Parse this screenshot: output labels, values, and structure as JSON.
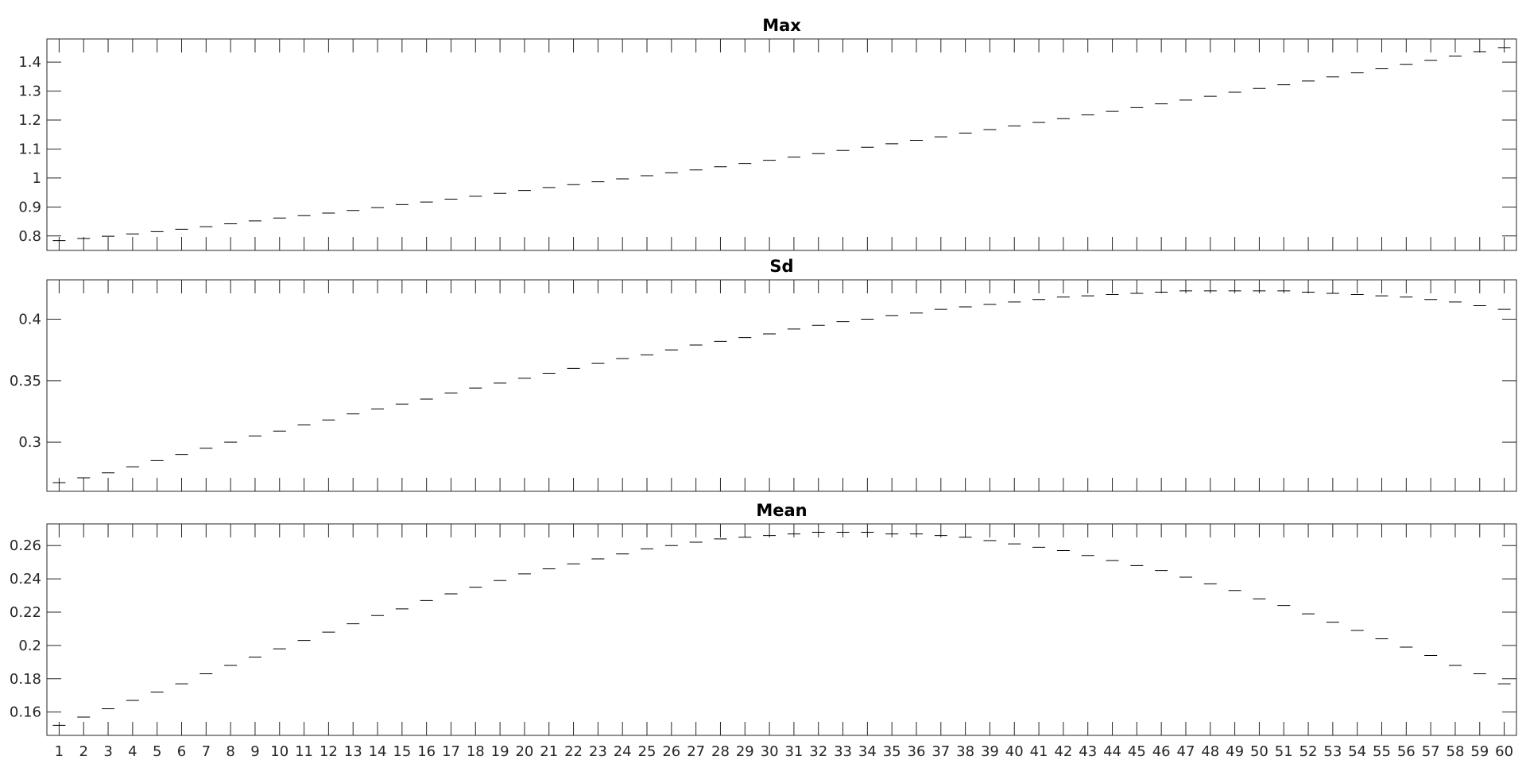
{
  "chart_data": [
    {
      "type": "line",
      "title": "Max",
      "xlabel": "",
      "ylabel": "",
      "x": [
        1,
        2,
        3,
        4,
        5,
        6,
        7,
        8,
        9,
        10,
        11,
        12,
        13,
        14,
        15,
        16,
        17,
        18,
        19,
        20,
        21,
        22,
        23,
        24,
        25,
        26,
        27,
        28,
        29,
        30,
        31,
        32,
        33,
        34,
        35,
        36,
        37,
        38,
        39,
        40,
        41,
        42,
        43,
        44,
        45,
        46,
        47,
        48,
        49,
        50,
        51,
        52,
        53,
        54,
        55,
        56,
        57,
        58,
        59,
        60
      ],
      "xlim": [
        0.5,
        60.5
      ],
      "ylim": [
        0.75,
        1.48
      ],
      "yticks": [
        0.8,
        0.9,
        1,
        1.1,
        1.2,
        1.3,
        1.4
      ],
      "ytick_labels": [
        "0.8",
        "0.9",
        "1",
        "1.1",
        "1.2",
        "1.3",
        "1.4"
      ],
      "show_x_tick_labels": false,
      "grid": false,
      "series": [
        {
          "values": [
            0.784,
            0.791,
            0.799,
            0.807,
            0.815,
            0.823,
            0.832,
            0.842,
            0.852,
            0.862,
            0.87,
            0.879,
            0.888,
            0.898,
            0.908,
            0.917,
            0.927,
            0.937,
            0.947,
            0.957,
            0.967,
            0.977,
            0.987,
            0.997,
            1.008,
            1.018,
            1.028,
            1.039,
            1.05,
            1.061,
            1.072,
            1.084,
            1.095,
            1.106,
            1.118,
            1.13,
            1.142,
            1.155,
            1.167,
            1.18,
            1.192,
            1.205,
            1.218,
            1.23,
            1.243,
            1.256,
            1.269,
            1.282,
            1.296,
            1.309,
            1.322,
            1.335,
            1.349,
            1.363,
            1.377,
            1.392,
            1.406,
            1.421,
            1.436,
            1.45
          ]
        }
      ]
    },
    {
      "type": "line",
      "title": "Sd",
      "xlabel": "",
      "ylabel": "",
      "x": [
        1,
        2,
        3,
        4,
        5,
        6,
        7,
        8,
        9,
        10,
        11,
        12,
        13,
        14,
        15,
        16,
        17,
        18,
        19,
        20,
        21,
        22,
        23,
        24,
        25,
        26,
        27,
        28,
        29,
        30,
        31,
        32,
        33,
        34,
        35,
        36,
        37,
        38,
        39,
        40,
        41,
        42,
        43,
        44,
        45,
        46,
        47,
        48,
        49,
        50,
        51,
        52,
        53,
        54,
        55,
        56,
        57,
        58,
        59,
        60
      ],
      "xlim": [
        0.5,
        60.5
      ],
      "ylim": [
        0.26,
        0.432
      ],
      "yticks": [
        0.3,
        0.35,
        0.4
      ],
      "ytick_labels": [
        "0.3",
        "0.35",
        "0.4"
      ],
      "show_x_tick_labels": false,
      "grid": false,
      "series": [
        {
          "values": [
            0.267,
            0.271,
            0.275,
            0.28,
            0.285,
            0.29,
            0.295,
            0.3,
            0.305,
            0.309,
            0.314,
            0.318,
            0.323,
            0.327,
            0.331,
            0.335,
            0.34,
            0.344,
            0.348,
            0.352,
            0.356,
            0.36,
            0.364,
            0.368,
            0.371,
            0.375,
            0.379,
            0.382,
            0.385,
            0.388,
            0.392,
            0.395,
            0.398,
            0.4,
            0.403,
            0.405,
            0.408,
            0.41,
            0.412,
            0.414,
            0.416,
            0.418,
            0.419,
            0.42,
            0.421,
            0.422,
            0.423,
            0.423,
            0.423,
            0.423,
            0.423,
            0.422,
            0.421,
            0.42,
            0.419,
            0.418,
            0.416,
            0.414,
            0.411,
            0.408
          ]
        }
      ]
    },
    {
      "type": "line",
      "title": "Mean",
      "xlabel": "",
      "ylabel": "",
      "x": [
        1,
        2,
        3,
        4,
        5,
        6,
        7,
        8,
        9,
        10,
        11,
        12,
        13,
        14,
        15,
        16,
        17,
        18,
        19,
        20,
        21,
        22,
        23,
        24,
        25,
        26,
        27,
        28,
        29,
        30,
        31,
        32,
        33,
        34,
        35,
        36,
        37,
        38,
        39,
        40,
        41,
        42,
        43,
        44,
        45,
        46,
        47,
        48,
        49,
        50,
        51,
        52,
        53,
        54,
        55,
        56,
        57,
        58,
        59,
        60
      ],
      "xlim": [
        0.5,
        60.5
      ],
      "ylim": [
        0.146,
        0.273
      ],
      "yticks": [
        0.16,
        0.18,
        0.2,
        0.22,
        0.24,
        0.26
      ],
      "ytick_labels": [
        "0.16",
        "0.18",
        "0.2",
        "0.22",
        "0.24",
        "0.26"
      ],
      "show_x_tick_labels": true,
      "xtick_labels": [
        "1",
        "2",
        "3",
        "4",
        "5",
        "6",
        "7",
        "8",
        "9",
        "10",
        "11",
        "12",
        "13",
        "14",
        "15",
        "16",
        "17",
        "18",
        "19",
        "20",
        "21",
        "22",
        "23",
        "24",
        "25",
        "26",
        "27",
        "28",
        "29",
        "30",
        "31",
        "32",
        "33",
        "34",
        "35",
        "36",
        "37",
        "38",
        "39",
        "40",
        "41",
        "42",
        "43",
        "44",
        "45",
        "46",
        "47",
        "48",
        "49",
        "50",
        "51",
        "52",
        "53",
        "54",
        "55",
        "56",
        "57",
        "58",
        "59",
        "60"
      ],
      "grid": false,
      "series": [
        {
          "values": [
            0.152,
            0.157,
            0.162,
            0.167,
            0.172,
            0.177,
            0.183,
            0.188,
            0.193,
            0.198,
            0.203,
            0.208,
            0.213,
            0.218,
            0.222,
            0.227,
            0.231,
            0.235,
            0.239,
            0.243,
            0.246,
            0.249,
            0.252,
            0.255,
            0.258,
            0.26,
            0.262,
            0.264,
            0.265,
            0.266,
            0.267,
            0.268,
            0.268,
            0.268,
            0.267,
            0.267,
            0.266,
            0.265,
            0.263,
            0.261,
            0.259,
            0.257,
            0.254,
            0.251,
            0.248,
            0.245,
            0.241,
            0.237,
            0.233,
            0.228,
            0.224,
            0.219,
            0.214,
            0.209,
            0.204,
            0.199,
            0.194,
            0.188,
            0.183,
            0.177
          ]
        }
      ]
    }
  ]
}
